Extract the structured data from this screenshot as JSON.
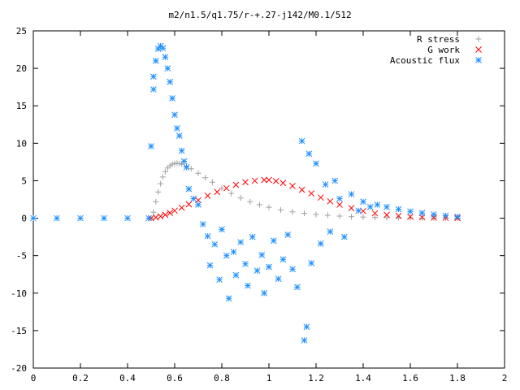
{
  "chart_data": {
    "type": "scatter",
    "title": "m2/n1.5/q1.75/r-+.27-j142/M0.1/512",
    "xlabel": "",
    "ylabel": "",
    "xlim": [
      0,
      2
    ],
    "ylim": [
      -20,
      25
    ],
    "xticks": [
      "0",
      "0.2",
      "0.4",
      "0.6",
      "0.8",
      "1",
      "1.2",
      "1.4",
      "1.6",
      "1.8",
      "2"
    ],
    "yticks": [
      "25",
      "20",
      "15",
      "10",
      "5",
      "0",
      "-5",
      "-10",
      "-15",
      "-20"
    ],
    "grid": false,
    "legend_position": "top-right",
    "series": [
      {
        "name": "R stress",
        "marker": "plus",
        "color": "#a0a0a0",
        "points": [
          [
            0.5,
            0
          ],
          [
            0.51,
            0.8
          ],
          [
            0.52,
            2.2
          ],
          [
            0.53,
            3.5
          ],
          [
            0.54,
            4.6
          ],
          [
            0.55,
            5.5
          ],
          [
            0.56,
            6.2
          ],
          [
            0.57,
            6.7
          ],
          [
            0.58,
            7.0
          ],
          [
            0.59,
            7.2
          ],
          [
            0.6,
            7.3
          ],
          [
            0.61,
            7.35
          ],
          [
            0.62,
            7.3
          ],
          [
            0.63,
            7.2
          ],
          [
            0.65,
            6.95
          ],
          [
            0.67,
            6.6
          ],
          [
            0.7,
            6.0
          ],
          [
            0.73,
            5.4
          ],
          [
            0.76,
            4.8
          ],
          [
            0.8,
            4.0
          ],
          [
            0.84,
            3.3
          ],
          [
            0.88,
            2.7
          ],
          [
            0.92,
            2.2
          ],
          [
            0.96,
            1.8
          ],
          [
            1.0,
            1.45
          ],
          [
            1.05,
            1.1
          ],
          [
            1.1,
            0.85
          ],
          [
            1.15,
            0.65
          ],
          [
            1.2,
            0.5
          ],
          [
            1.25,
            0.38
          ],
          [
            1.3,
            0.28
          ],
          [
            1.35,
            0.2
          ],
          [
            1.4,
            0.15
          ],
          [
            1.45,
            0.1
          ],
          [
            1.5,
            0.07
          ],
          [
            1.55,
            0.05
          ],
          [
            1.6,
            0.03
          ],
          [
            1.65,
            0.02
          ],
          [
            1.7,
            0.01
          ],
          [
            1.75,
            0.01
          ],
          [
            1.8,
            0.0
          ]
        ]
      },
      {
        "name": "G work",
        "marker": "cross",
        "color": "#ff0000",
        "points": [
          [
            0.5,
            0
          ],
          [
            0.52,
            0.1
          ],
          [
            0.54,
            0.25
          ],
          [
            0.56,
            0.45
          ],
          [
            0.58,
            0.7
          ],
          [
            0.6,
            1.0
          ],
          [
            0.63,
            1.4
          ],
          [
            0.66,
            1.85
          ],
          [
            0.7,
            2.4
          ],
          [
            0.74,
            3.0
          ],
          [
            0.78,
            3.5
          ],
          [
            0.82,
            4.0
          ],
          [
            0.86,
            4.45
          ],
          [
            0.9,
            4.8
          ],
          [
            0.94,
            5.0
          ],
          [
            0.98,
            5.1
          ],
          [
            1.0,
            5.1
          ],
          [
            1.03,
            4.95
          ],
          [
            1.06,
            4.7
          ],
          [
            1.1,
            4.3
          ],
          [
            1.14,
            3.8
          ],
          [
            1.18,
            3.3
          ],
          [
            1.22,
            2.75
          ],
          [
            1.26,
            2.25
          ],
          [
            1.3,
            1.8
          ],
          [
            1.35,
            1.35
          ],
          [
            1.4,
            0.95
          ],
          [
            1.45,
            0.65
          ],
          [
            1.5,
            0.45
          ],
          [
            1.55,
            0.3
          ],
          [
            1.6,
            0.2
          ],
          [
            1.65,
            0.12
          ],
          [
            1.7,
            0.07
          ],
          [
            1.75,
            0.04
          ],
          [
            1.8,
            0.02
          ]
        ]
      },
      {
        "name": "Acoustic flux",
        "marker": "star",
        "color": "#1e90ff",
        "points": [
          [
            0.0,
            0
          ],
          [
            0.1,
            0
          ],
          [
            0.2,
            0
          ],
          [
            0.3,
            0
          ],
          [
            0.4,
            0
          ],
          [
            0.49,
            0
          ],
          [
            0.5,
            9.6
          ],
          [
            0.51,
            17.2
          ],
          [
            0.51,
            18.9
          ],
          [
            0.52,
            21.0
          ],
          [
            0.53,
            22.6
          ],
          [
            0.54,
            23.0
          ],
          [
            0.55,
            22.7
          ],
          [
            0.56,
            21.5
          ],
          [
            0.57,
            20.0
          ],
          [
            0.58,
            18.2
          ],
          [
            0.59,
            16.0
          ],
          [
            0.6,
            13.8
          ],
          [
            0.61,
            12.0
          ],
          [
            0.62,
            11.0
          ],
          [
            0.63,
            9.0
          ],
          [
            0.64,
            7.6
          ],
          [
            0.65,
            6.8
          ],
          [
            0.66,
            3.9
          ],
          [
            0.68,
            2.6
          ],
          [
            0.7,
            1.8
          ],
          [
            0.72,
            -0.8
          ],
          [
            0.74,
            -2.4
          ],
          [
            0.75,
            -6.3
          ],
          [
            0.77,
            -3.5
          ],
          [
            0.79,
            -8.2
          ],
          [
            0.8,
            -1.5
          ],
          [
            0.82,
            -5.0
          ],
          [
            0.83,
            -10.7
          ],
          [
            0.85,
            -4.5
          ],
          [
            0.86,
            -7.6
          ],
          [
            0.88,
            -3.2
          ],
          [
            0.9,
            -6.1
          ],
          [
            0.91,
            -9.0
          ],
          [
            0.93,
            -2.5
          ],
          [
            0.95,
            -7.0
          ],
          [
            0.97,
            -4.9
          ],
          [
            0.98,
            -10.0
          ],
          [
            1.0,
            -6.5
          ],
          [
            1.02,
            -3.0
          ],
          [
            1.04,
            -8.1
          ],
          [
            1.06,
            -5.5
          ],
          [
            1.08,
            -2.2
          ],
          [
            1.1,
            -6.8
          ],
          [
            1.12,
            -9.2
          ],
          [
            1.14,
            10.3
          ],
          [
            1.15,
            -16.3
          ],
          [
            1.16,
            -14.5
          ],
          [
            1.17,
            8.6
          ],
          [
            1.18,
            -6.0
          ],
          [
            1.2,
            7.3
          ],
          [
            1.22,
            -3.4
          ],
          [
            1.24,
            4.5
          ],
          [
            1.26,
            -1.8
          ],
          [
            1.28,
            5.0
          ],
          [
            1.3,
            2.6
          ],
          [
            1.32,
            -2.5
          ],
          [
            1.35,
            3.2
          ],
          [
            1.38,
            1.0
          ],
          [
            1.4,
            2.2
          ],
          [
            1.43,
            1.5
          ],
          [
            1.46,
            1.8
          ],
          [
            1.5,
            1.5
          ],
          [
            1.55,
            1.2
          ],
          [
            1.6,
            0.9
          ],
          [
            1.65,
            0.7
          ],
          [
            1.7,
            0.5
          ],
          [
            1.75,
            0.35
          ],
          [
            1.8,
            0.2
          ]
        ]
      }
    ]
  }
}
